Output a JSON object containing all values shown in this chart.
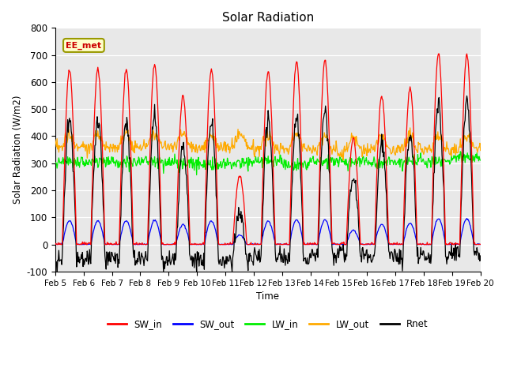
{
  "title": "Solar Radiation",
  "ylabel": "Solar Radiation (W/m2)",
  "xlabel": "Time",
  "ylim": [
    -100,
    800
  ],
  "yticks": [
    -100,
    0,
    100,
    200,
    300,
    400,
    500,
    600,
    700,
    800
  ],
  "xtick_labels": [
    "Feb 5",
    "Feb 6",
    "Feb 7",
    "Feb 8",
    "Feb 9",
    "Feb 10",
    "Feb 11",
    "Feb 12",
    "Feb 13",
    "Feb 14",
    "Feb 15",
    "Feb 16",
    "Feb 17",
    "Feb 18",
    "Feb 19",
    "Feb 20"
  ],
  "colors": {
    "SW_in": "#ff0000",
    "SW_out": "#0000ff",
    "LW_in": "#00ee00",
    "LW_out": "#ffaa00",
    "Rnet": "#000000"
  },
  "legend_label": "EE_met",
  "background_color": "#e8e8e8",
  "n_days": 15,
  "hours_per_day": 48,
  "sw_peaks": [
    645,
    650,
    648,
    665,
    548,
    645,
    252,
    640,
    675,
    680,
    390,
    548,
    578,
    706,
    700
  ],
  "lw_in_base": 310,
  "lw_out_base": 355,
  "nighttime_rnet": -55
}
